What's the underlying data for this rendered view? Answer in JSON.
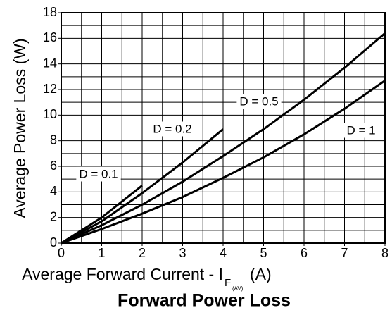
{
  "chart_data": {
    "type": "line",
    "title": "Forward Power Loss",
    "x_label": "Average Forward Current - I",
    "x_label_sub": "F",
    "x_label_subsub": "(AV)",
    "x_label_unit": "(A)",
    "y_label": "Average Power Loss (W)",
    "xlim": [
      0,
      8
    ],
    "ylim": [
      0,
      18
    ],
    "xticks": [
      0,
      1,
      2,
      3,
      4,
      5,
      6,
      7,
      8
    ],
    "yticks": [
      0,
      2,
      4,
      6,
      8,
      10,
      12,
      14,
      16,
      18
    ],
    "xgrid": [
      0.5,
      1,
      1.5,
      2,
      2.5,
      3,
      3.5,
      4,
      4.5,
      5,
      5.5,
      6,
      6.5,
      7,
      7.5
    ],
    "ygrid": [
      1,
      2,
      3,
      4,
      5,
      6,
      7,
      8,
      9,
      10,
      11,
      12,
      13,
      14,
      15,
      16,
      17
    ],
    "grid": true,
    "series": [
      {
        "name": "D = 0.1",
        "color": "#000000",
        "x": [
          0,
          1,
          2
        ],
        "values": [
          0,
          2.0,
          4.5
        ]
      },
      {
        "name": "D = 0.2",
        "color": "#000000",
        "x": [
          0,
          1,
          2,
          3,
          4
        ],
        "values": [
          0,
          1.7,
          3.9,
          6.3,
          8.9
        ]
      },
      {
        "name": "D = 0.5",
        "color": "#000000",
        "x": [
          0,
          1,
          2,
          3,
          4,
          5,
          6,
          7,
          8
        ],
        "values": [
          0,
          1.4,
          3.0,
          4.8,
          6.8,
          8.9,
          11.2,
          13.7,
          16.4
        ]
      },
      {
        "name": "D = 1",
        "color": "#000000",
        "x": [
          0,
          1,
          2,
          3,
          4,
          5,
          6,
          7,
          8
        ],
        "values": [
          0,
          1.1,
          2.3,
          3.6,
          5.1,
          6.7,
          8.5,
          10.5,
          12.7
        ]
      }
    ]
  }
}
